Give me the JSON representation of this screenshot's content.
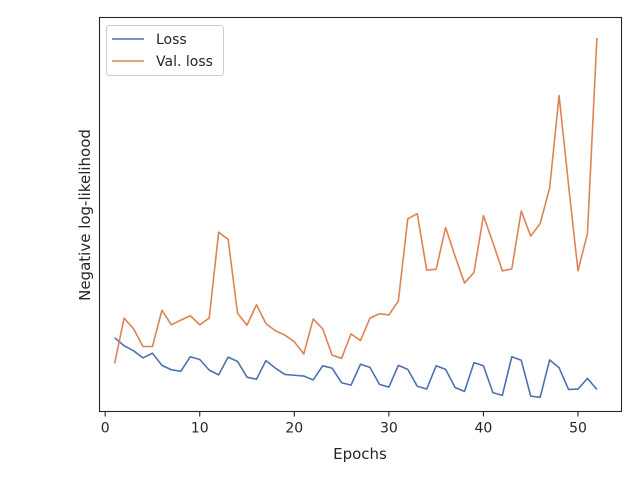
{
  "chart_data": {
    "type": "line",
    "title": "",
    "xlabel": "Epochs",
    "ylabel": "Negative log-likelihood",
    "xlim": [
      -0.6,
      54.6
    ],
    "ylim": [
      0,
      1
    ],
    "y_tick_labels_shown": false,
    "x_ticks": [
      0,
      10,
      20,
      30,
      40,
      50
    ],
    "x_tick_labels": [
      "0",
      "10",
      "20",
      "30",
      "40",
      "50"
    ],
    "grid": false,
    "legend": "top-left",
    "x": [
      1,
      2,
      3,
      4,
      5,
      6,
      7,
      8,
      9,
      10,
      11,
      12,
      13,
      14,
      15,
      16,
      17,
      18,
      19,
      20,
      21,
      22,
      23,
      24,
      25,
      26,
      27,
      28,
      29,
      30,
      31,
      32,
      33,
      34,
      35,
      36,
      37,
      38,
      39,
      40,
      41,
      42,
      43,
      44,
      45,
      46,
      47,
      48,
      49,
      50,
      51,
      52
    ],
    "series": [
      {
        "name": "Loss",
        "color": "#4c72b0",
        "values": [
          0.187,
          0.167,
          0.154,
          0.136,
          0.148,
          0.117,
          0.106,
          0.102,
          0.139,
          0.132,
          0.105,
          0.093,
          0.138,
          0.127,
          0.087,
          0.082,
          0.129,
          0.11,
          0.094,
          0.092,
          0.09,
          0.08,
          0.116,
          0.11,
          0.073,
          0.067,
          0.12,
          0.112,
          0.069,
          0.062,
          0.117,
          0.107,
          0.064,
          0.057,
          0.116,
          0.107,
          0.061,
          0.051,
          0.124,
          0.116,
          0.048,
          0.041,
          0.139,
          0.13,
          0.039,
          0.036,
          0.131,
          0.111,
          0.056,
          0.057,
          0.084,
          0.056
        ]
      },
      {
        "name": "Val. loss",
        "color": "#dd8452",
        "values": [
          0.122,
          0.237,
          0.21,
          0.165,
          0.165,
          0.257,
          0.22,
          0.232,
          0.243,
          0.22,
          0.237,
          0.455,
          0.437,
          0.249,
          0.219,
          0.271,
          0.223,
          0.205,
          0.194,
          0.177,
          0.146,
          0.235,
          0.21,
          0.143,
          0.135,
          0.197,
          0.18,
          0.237,
          0.248,
          0.245,
          0.28,
          0.489,
          0.502,
          0.359,
          0.361,
          0.467,
          0.394,
          0.326,
          0.353,
          0.497,
          0.429,
          0.357,
          0.362,
          0.509,
          0.445,
          0.477,
          0.567,
          0.802,
          0.575,
          0.357,
          0.452,
          0.948
        ]
      }
    ]
  }
}
